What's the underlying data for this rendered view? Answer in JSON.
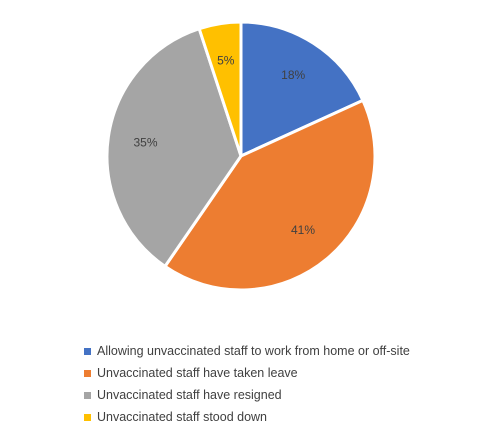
{
  "chart_data": {
    "type": "pie",
    "title": "",
    "slices": [
      {
        "label": "Allowing unvaccinated staff to work from home or off-site",
        "value": 18,
        "display": "18%",
        "color": "#4472c4"
      },
      {
        "label": "Unvaccinated staff have taken leave",
        "value": 41,
        "display": "41%",
        "color": "#ed7d31"
      },
      {
        "label": "Unvaccinated staff have resigned",
        "value": 35,
        "display": "35%",
        "color": "#a5a5a5"
      },
      {
        "label": "Unvaccinated staff stood down",
        "value": 5,
        "display": "5%",
        "color": "#ffc000"
      }
    ],
    "legend_position": "bottom-left"
  }
}
